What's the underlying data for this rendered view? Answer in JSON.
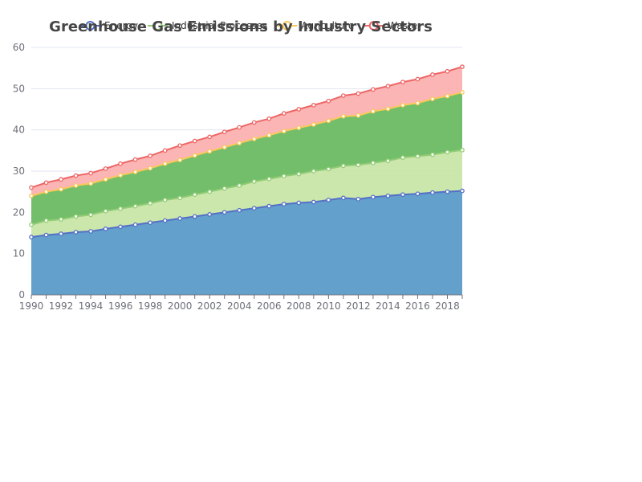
{
  "chart_data": {
    "type": "area",
    "stacked": true,
    "title": "Greenhouse Gas Emissions by Industry Sectors",
    "xlabel": "",
    "ylabel": "",
    "ylim": [
      0,
      60
    ],
    "yticks": [
      0,
      10,
      20,
      30,
      40,
      50,
      60
    ],
    "xticks": [
      "1990",
      "1992",
      "1994",
      "1996",
      "1998",
      "2000",
      "2002",
      "2004",
      "2006",
      "2008",
      "2010",
      "2012",
      "2014",
      "2016",
      "2018"
    ],
    "grid": true,
    "legend_position": "top",
    "x": [
      "1990",
      "1991",
      "1992",
      "1993",
      "1994",
      "1995",
      "1996",
      "1997",
      "1998",
      "1999",
      "2000",
      "2001",
      "2002",
      "2003",
      "2004",
      "2005",
      "2006",
      "2007",
      "2008",
      "2009",
      "2010",
      "2011",
      "2012",
      "2013",
      "2014",
      "2015",
      "2016",
      "2017",
      "2018",
      "2019"
    ],
    "series": [
      {
        "name": "Energy",
        "line_color": "#5470c6",
        "fill_color": "#5b9bc8",
        "values": [
          14.0,
          14.5,
          14.8,
          15.2,
          15.4,
          16.0,
          16.5,
          17.0,
          17.5,
          18.0,
          18.5,
          19.0,
          19.5,
          20.0,
          20.5,
          21.0,
          21.5,
          22.0,
          22.3,
          22.5,
          23.0,
          23.5,
          23.2,
          23.7,
          24.0,
          24.3,
          24.5,
          24.8,
          25.0,
          25.2
        ]
      },
      {
        "name": "Industrial Processes",
        "line_color": "#91cc75",
        "fill_color": "#c8e6a8",
        "values": [
          3.0,
          3.5,
          3.5,
          3.8,
          4.0,
          4.3,
          4.4,
          4.5,
          4.7,
          5.0,
          5.0,
          5.3,
          5.5,
          5.8,
          6.0,
          6.5,
          6.6,
          6.8,
          7.0,
          7.5,
          7.5,
          7.8,
          8.3,
          8.3,
          8.5,
          9.0,
          9.1,
          9.2,
          9.6,
          9.9
        ]
      },
      {
        "name": "Agriculture",
        "line_color": "#fac858",
        "fill_color": "#6cba63",
        "values": [
          7.0,
          7.0,
          7.3,
          7.5,
          7.6,
          7.7,
          8.1,
          8.3,
          8.5,
          8.8,
          9.2,
          9.5,
          9.8,
          10.0,
          10.3,
          10.3,
          10.6,
          10.9,
          11.2,
          11.3,
          11.7,
          12.0,
          12.0,
          12.5,
          12.6,
          12.7,
          12.9,
          13.5,
          13.6,
          14.0
        ]
      },
      {
        "name": "Waste",
        "line_color": "#ee6666",
        "fill_color": "#fbb1b0",
        "values": [
          2.0,
          2.2,
          2.4,
          2.4,
          2.5,
          2.6,
          2.8,
          3.0,
          3.0,
          3.2,
          3.5,
          3.5,
          3.5,
          3.7,
          3.8,
          4.0,
          4.0,
          4.3,
          4.5,
          4.7,
          4.8,
          5.0,
          5.3,
          5.3,
          5.5,
          5.6,
          5.8,
          5.9,
          6.0,
          6.2
        ]
      }
    ]
  }
}
